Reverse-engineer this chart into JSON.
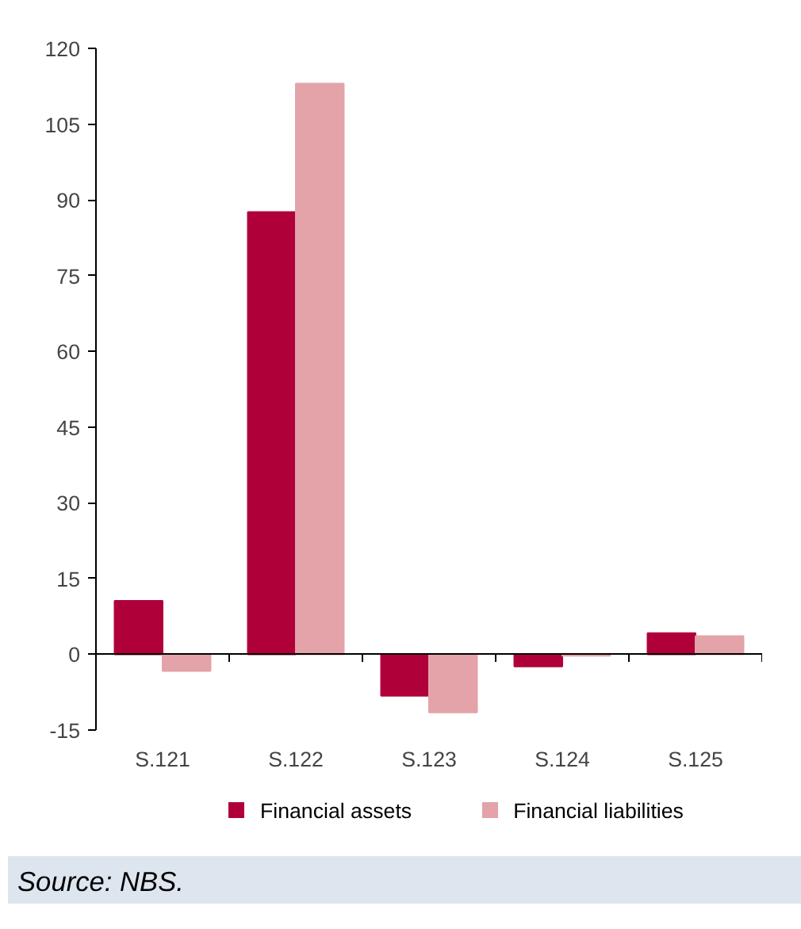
{
  "chart_data": {
    "type": "bar",
    "categories": [
      "S.121",
      "S.122",
      "S.123",
      "S.124",
      "S.125"
    ],
    "series": [
      {
        "name": "Financial assets",
        "color": "#b0003a",
        "values": [
          10.6,
          87.6,
          -8.2,
          -2.4,
          4.2
        ]
      },
      {
        "name": "Financial liabilities",
        "color": "#e3a3a8",
        "values": [
          -3.3,
          113,
          -11.5,
          -0.3,
          3.6
        ]
      }
    ],
    "ylim": [
      -15,
      120
    ],
    "yticks": [
      -15,
      0,
      15,
      30,
      45,
      60,
      75,
      90,
      105,
      120
    ],
    "legend": "bottom",
    "annotations": [
      "Source: NBS."
    ]
  }
}
